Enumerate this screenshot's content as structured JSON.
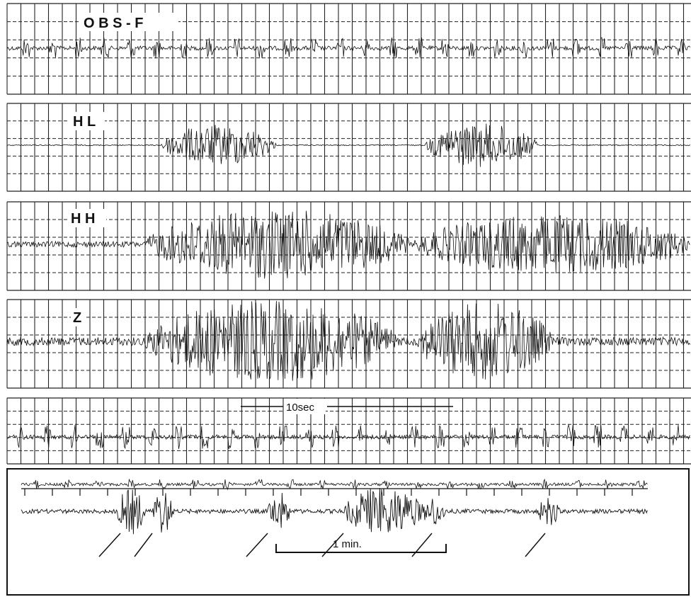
{
  "panels": [
    {
      "label": "O B S - F"
    },
    {
      "label": "H L"
    },
    {
      "label": "H H"
    },
    {
      "label": "Z"
    }
  ],
  "time_scale": {
    "label": "10sec"
  },
  "bottom_scale": {
    "label": "1 min."
  }
}
